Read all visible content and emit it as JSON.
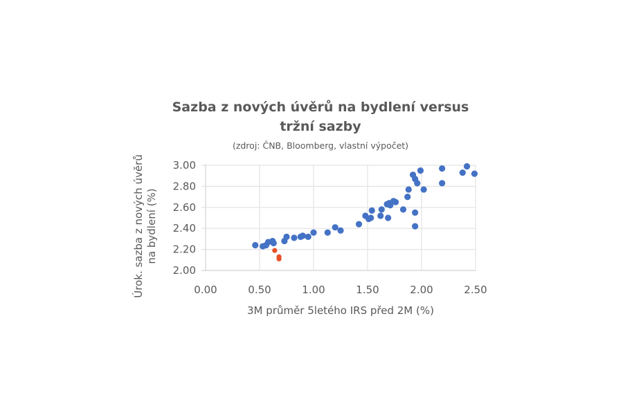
{
  "chart_data": {
    "type": "scatter",
    "title": "Sazba z nových úvěrů na bydlení versus tržní sazby",
    "title_lines": [
      "Sazba z nových úvěrů na bydlení versus",
      "tržní sazby"
    ],
    "subtitle": "(zdroj: ČNB, Bloomberg, vlastní výpočet)",
    "xlabel": "3M průměr 5letého IRS před 2M (%)",
    "ylabel_lines": [
      "Úrok. sazba z nových úvěrů",
      "na bydlení (%)"
    ],
    "xlim": [
      0.0,
      2.5
    ],
    "ylim": [
      2.0,
      3.0
    ],
    "x_ticks": [
      "0.00",
      "0.50",
      "1.00",
      "1.50",
      "2.00",
      "2.50"
    ],
    "y_ticks": [
      "2.00",
      "2.20",
      "2.40",
      "2.60",
      "2.80",
      "3.00"
    ],
    "grid": true,
    "legend": null,
    "series": [
      {
        "name": "blue",
        "color": "#4472C4",
        "points": [
          [
            0.46,
            2.24
          ],
          [
            0.53,
            2.23
          ],
          [
            0.56,
            2.24
          ],
          [
            0.58,
            2.27
          ],
          [
            0.62,
            2.28
          ],
          [
            0.63,
            2.26
          ],
          [
            0.73,
            2.28
          ],
          [
            0.75,
            2.32
          ],
          [
            0.82,
            2.31
          ],
          [
            0.88,
            2.32
          ],
          [
            0.9,
            2.33
          ],
          [
            0.95,
            2.32
          ],
          [
            1.0,
            2.36
          ],
          [
            1.13,
            2.36
          ],
          [
            1.2,
            2.41
          ],
          [
            1.25,
            2.38
          ],
          [
            1.42,
            2.44
          ],
          [
            1.48,
            2.52
          ],
          [
            1.51,
            2.49
          ],
          [
            1.53,
            2.5
          ],
          [
            1.54,
            2.57
          ],
          [
            1.62,
            2.52
          ],
          [
            1.63,
            2.58
          ],
          [
            1.69,
            2.5
          ],
          [
            1.68,
            2.63
          ],
          [
            1.7,
            2.64
          ],
          [
            1.71,
            2.62
          ],
          [
            1.74,
            2.66
          ],
          [
            1.76,
            2.65
          ],
          [
            1.83,
            2.58
          ],
          [
            1.87,
            2.7
          ],
          [
            1.88,
            2.77
          ],
          [
            1.92,
            2.91
          ],
          [
            1.94,
            2.87
          ],
          [
            1.96,
            2.83
          ],
          [
            1.99,
            2.95
          ],
          [
            2.02,
            2.77
          ],
          [
            1.94,
            2.55
          ],
          [
            1.94,
            2.42
          ],
          [
            2.19,
            2.97
          ],
          [
            2.19,
            2.83
          ],
          [
            2.38,
            2.93
          ],
          [
            2.42,
            2.99
          ],
          [
            2.49,
            2.92
          ]
        ]
      },
      {
        "name": "red",
        "color": "#E8502A",
        "points": [
          [
            0.64,
            2.19
          ],
          [
            0.68,
            2.13
          ],
          [
            0.68,
            2.11
          ]
        ]
      }
    ]
  }
}
